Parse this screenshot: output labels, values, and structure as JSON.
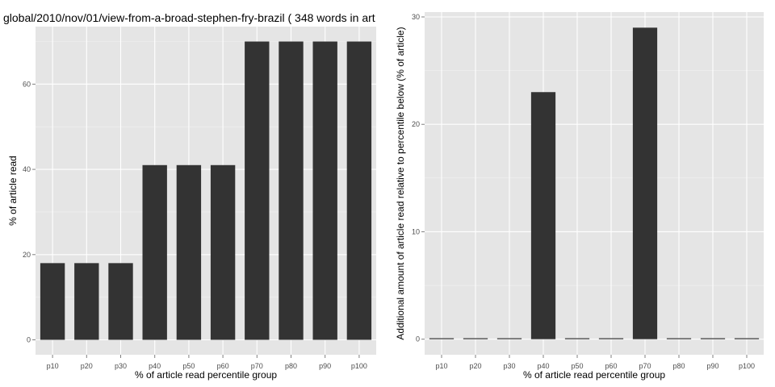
{
  "chart_data": [
    {
      "type": "bar",
      "title": "global/2010/nov/01/view-from-a-broad-stephen-fry-brazil ( 348 words in art",
      "xlabel": "% of article read percentile group",
      "ylabel": "% of article read",
      "categories": [
        "p10",
        "p20",
        "p30",
        "p40",
        "p50",
        "p60",
        "p70",
        "p80",
        "p90",
        "p100"
      ],
      "values": [
        18,
        18,
        18,
        41,
        41,
        41,
        70,
        70,
        70,
        70
      ],
      "ylim": [
        -3.5,
        73.5
      ],
      "yticks": [
        0,
        20,
        40,
        60
      ],
      "grid": true
    },
    {
      "type": "bar",
      "title": "",
      "xlabel": "% of article read percentile group",
      "ylabel": "Additional amount of article read relative to percentile below (% of article)",
      "categories": [
        "p10",
        "p20",
        "p30",
        "p40",
        "p50",
        "p60",
        "p70",
        "p80",
        "p90",
        "p100"
      ],
      "values": [
        0,
        0,
        0,
        23,
        0,
        0,
        29,
        0,
        0,
        0
      ],
      "ylim": [
        -1.45,
        30.45
      ],
      "yticks": [
        0,
        10,
        20,
        30
      ],
      "grid": true
    }
  ]
}
